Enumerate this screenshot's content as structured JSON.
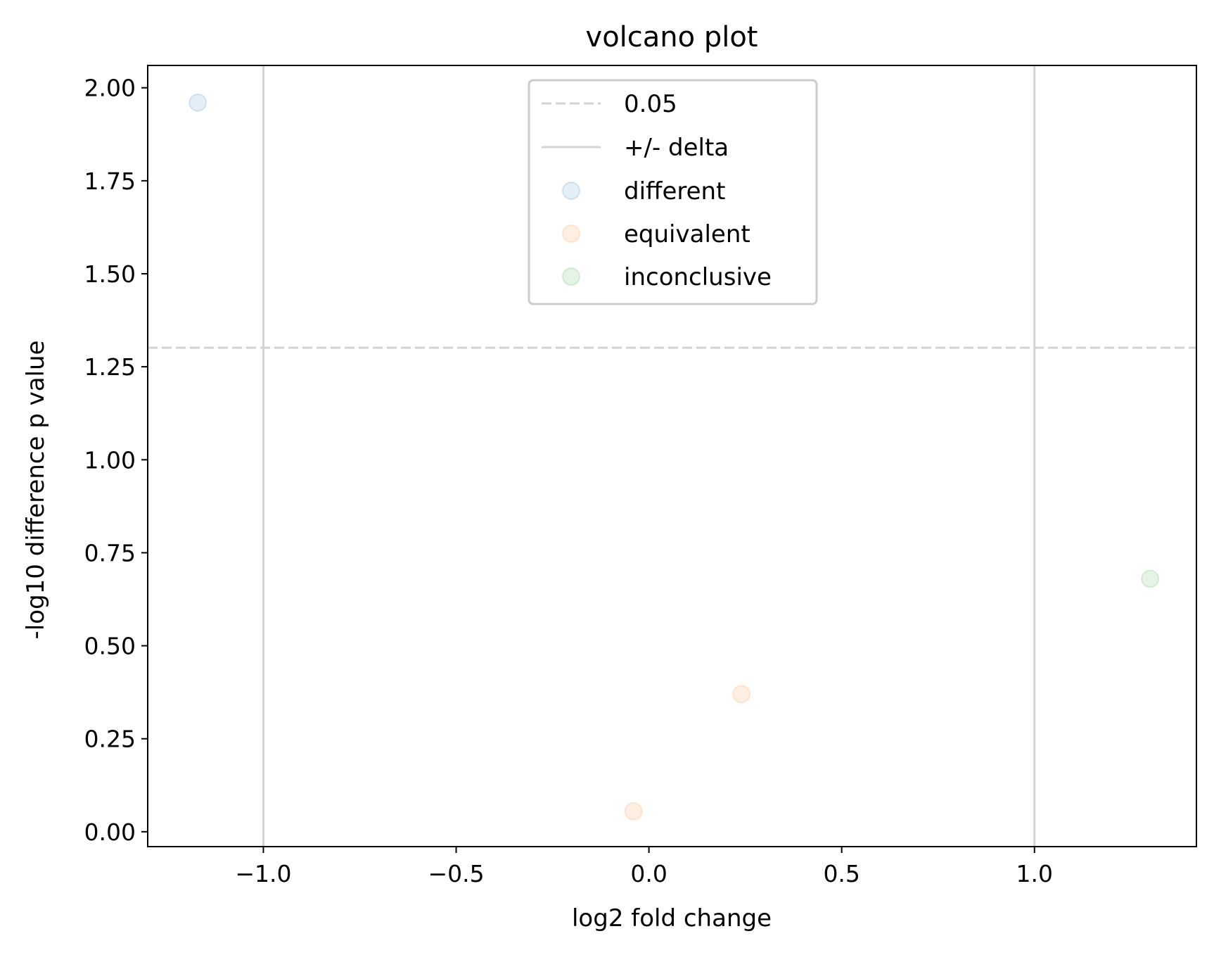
{
  "chart_data": {
    "type": "scatter",
    "title": "volcano plot",
    "xlabel": "log2 fold change",
    "ylabel": "-log10 difference p value",
    "xlim": [
      -1.3,
      1.42
    ],
    "ylim": [
      -0.04,
      2.06
    ],
    "x_ticks": [
      -1.0,
      -0.5,
      0.0,
      0.5,
      1.0
    ],
    "x_tick_labels": [
      "−1.0",
      "−0.5",
      "0.0",
      "0.5",
      "1.0"
    ],
    "y_ticks": [
      0.0,
      0.25,
      0.5,
      0.75,
      1.0,
      1.25,
      1.5,
      1.75,
      2.0
    ],
    "y_tick_labels": [
      "0.00",
      "0.25",
      "0.50",
      "0.75",
      "1.00",
      "1.25",
      "1.50",
      "1.75",
      "2.00"
    ],
    "grid": false,
    "legend_position": "top-center",
    "reference_lines": [
      {
        "label": "0.05",
        "orientation": "horizontal",
        "value": 1.301,
        "style": "dashed",
        "color": "#d3d3d3"
      },
      {
        "label": "+/- delta",
        "orientation": "vertical",
        "values": [
          -1.0,
          1.0
        ],
        "style": "solid",
        "color": "#d3d3d3"
      }
    ],
    "series": [
      {
        "name": "different",
        "color": "#1f77b4",
        "points": [
          {
            "x": -1.17,
            "y": 1.96
          }
        ]
      },
      {
        "name": "equivalent",
        "color": "#ff7f0e",
        "points": [
          {
            "x": -0.04,
            "y": 0.055
          },
          {
            "x": 0.24,
            "y": 0.37
          }
        ]
      },
      {
        "name": "inconclusive",
        "color": "#2ca02c",
        "points": [
          {
            "x": 1.3,
            "y": 0.68
          }
        ]
      }
    ]
  }
}
